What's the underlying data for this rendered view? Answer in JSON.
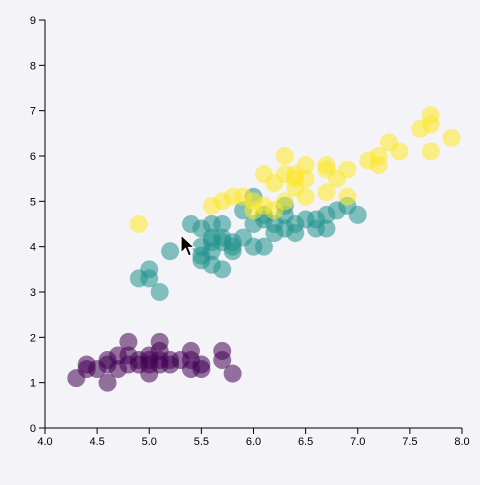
{
  "chart_data": {
    "type": "scatter",
    "title": "",
    "xlabel": "",
    "ylabel": "",
    "xlim": [
      4.0,
      8.0
    ],
    "ylim": [
      0,
      9
    ],
    "x_ticks": [
      "4.0",
      "4.5",
      "5.0",
      "5.5",
      "6.0",
      "6.5",
      "7.0",
      "7.5",
      "8.0"
    ],
    "y_ticks": [
      "0",
      "1",
      "2",
      "3",
      "4",
      "5",
      "6",
      "7",
      "8",
      "9"
    ],
    "grid": false,
    "legend": "none",
    "series": [
      {
        "color": "#440154",
        "points": [
          [
            4.3,
            1.1
          ],
          [
            4.4,
            1.3
          ],
          [
            4.4,
            1.4
          ],
          [
            4.5,
            1.3
          ],
          [
            4.6,
            1.0
          ],
          [
            4.6,
            1.4
          ],
          [
            4.6,
            1.5
          ],
          [
            4.7,
            1.3
          ],
          [
            4.7,
            1.6
          ],
          [
            4.8,
            1.4
          ],
          [
            4.8,
            1.6
          ],
          [
            4.8,
            1.9
          ],
          [
            4.9,
            1.4
          ],
          [
            4.9,
            1.5
          ],
          [
            5.0,
            1.2
          ],
          [
            5.0,
            1.4
          ],
          [
            5.0,
            1.5
          ],
          [
            5.0,
            1.6
          ],
          [
            5.1,
            1.4
          ],
          [
            5.1,
            1.5
          ],
          [
            5.1,
            1.7
          ],
          [
            5.1,
            1.9
          ],
          [
            5.2,
            1.4
          ],
          [
            5.2,
            1.5
          ],
          [
            5.3,
            1.5
          ],
          [
            5.4,
            1.3
          ],
          [
            5.4,
            1.5
          ],
          [
            5.4,
            1.7
          ],
          [
            5.5,
            1.3
          ],
          [
            5.5,
            1.4
          ],
          [
            5.7,
            1.5
          ],
          [
            5.7,
            1.7
          ],
          [
            5.8,
            1.2
          ]
        ]
      },
      {
        "color": "#21918c",
        "points": [
          [
            4.9,
            3.3
          ],
          [
            5.0,
            3.3
          ],
          [
            5.0,
            3.5
          ],
          [
            5.1,
            3.0
          ],
          [
            5.2,
            3.9
          ],
          [
            5.4,
            4.5
          ],
          [
            5.5,
            3.8
          ],
          [
            5.5,
            3.7
          ],
          [
            5.5,
            4.0
          ],
          [
            5.5,
            4.4
          ],
          [
            5.6,
            3.6
          ],
          [
            5.6,
            3.9
          ],
          [
            5.6,
            4.1
          ],
          [
            5.6,
            4.2
          ],
          [
            5.6,
            4.5
          ],
          [
            5.7,
            3.5
          ],
          [
            5.7,
            4.1
          ],
          [
            5.7,
            4.2
          ],
          [
            5.7,
            4.5
          ],
          [
            5.8,
            3.9
          ],
          [
            5.8,
            4.0
          ],
          [
            5.8,
            4.1
          ],
          [
            5.9,
            4.2
          ],
          [
            5.9,
            4.8
          ],
          [
            6.0,
            4.0
          ],
          [
            6.0,
            4.5
          ],
          [
            6.0,
            5.1
          ],
          [
            6.1,
            4.0
          ],
          [
            6.1,
            4.6
          ],
          [
            6.1,
            4.7
          ],
          [
            6.2,
            4.3
          ],
          [
            6.2,
            4.5
          ],
          [
            6.3,
            4.4
          ],
          [
            6.3,
            4.7
          ],
          [
            6.3,
            4.9
          ],
          [
            6.4,
            4.3
          ],
          [
            6.4,
            4.5
          ],
          [
            6.5,
            4.6
          ],
          [
            6.6,
            4.4
          ],
          [
            6.6,
            4.6
          ],
          [
            6.7,
            4.4
          ],
          [
            6.7,
            4.7
          ],
          [
            6.8,
            4.8
          ],
          [
            6.9,
            4.9
          ],
          [
            7.0,
            4.7
          ]
        ]
      },
      {
        "color": "#fde725",
        "points": [
          [
            4.9,
            4.5
          ],
          [
            5.6,
            4.9
          ],
          [
            5.7,
            5.0
          ],
          [
            5.8,
            5.1
          ],
          [
            5.9,
            5.1
          ],
          [
            6.0,
            4.8
          ],
          [
            6.0,
            5.0
          ],
          [
            6.1,
            4.9
          ],
          [
            6.1,
            5.6
          ],
          [
            6.2,
            4.8
          ],
          [
            6.2,
            5.4
          ],
          [
            6.3,
            5.0
          ],
          [
            6.3,
            5.6
          ],
          [
            6.3,
            6.0
          ],
          [
            6.4,
            5.3
          ],
          [
            6.4,
            5.5
          ],
          [
            6.4,
            5.6
          ],
          [
            6.5,
            5.1
          ],
          [
            6.5,
            5.5
          ],
          [
            6.5,
            5.8
          ],
          [
            6.7,
            5.2
          ],
          [
            6.7,
            5.7
          ],
          [
            6.7,
            5.8
          ],
          [
            6.8,
            5.5
          ],
          [
            6.9,
            5.1
          ],
          [
            6.9,
            5.7
          ],
          [
            7.1,
            5.9
          ],
          [
            7.2,
            5.8
          ],
          [
            7.2,
            6.0
          ],
          [
            7.3,
            6.3
          ],
          [
            7.4,
            6.1
          ],
          [
            7.6,
            6.6
          ],
          [
            7.7,
            6.1
          ],
          [
            7.7,
            6.7
          ],
          [
            7.7,
            6.9
          ],
          [
            7.9,
            6.4
          ]
        ]
      }
    ]
  }
}
